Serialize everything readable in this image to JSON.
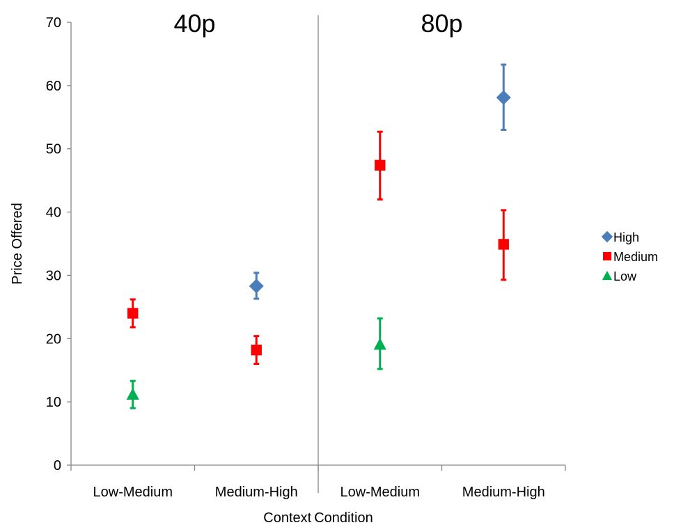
{
  "chart_data": {
    "type": "scatter",
    "ylabel": "Price Offered",
    "xlabel_parts": [
      "Context",
      "Condition"
    ],
    "ylim": [
      0,
      70
    ],
    "yticks": [
      0,
      10,
      20,
      30,
      40,
      50,
      60,
      70
    ],
    "panels": [
      {
        "title": "40p",
        "categories": [
          "Low-Medium",
          "Medium-High"
        ]
      },
      {
        "title": "80p",
        "categories": [
          "Low-Medium",
          "Medium-High"
        ]
      }
    ],
    "legend_position": "right",
    "series": [
      {
        "name": "High",
        "color": "#4a7ebb",
        "marker": "diamond",
        "points": [
          {
            "panel": 0,
            "category": "Medium-High",
            "y": 28.3,
            "err_low": 26.3,
            "err_high": 30.4
          },
          {
            "panel": 1,
            "category": "Medium-High",
            "y": 58.1,
            "err_low": 53.0,
            "err_high": 63.3
          }
        ]
      },
      {
        "name": "Medium",
        "color": "#ff0000",
        "marker": "square",
        "points": [
          {
            "panel": 0,
            "category": "Low-Medium",
            "y": 24.0,
            "err_low": 21.8,
            "err_high": 26.2
          },
          {
            "panel": 0,
            "category": "Medium-High",
            "y": 18.2,
            "err_low": 16.0,
            "err_high": 20.4
          },
          {
            "panel": 1,
            "category": "Low-Medium",
            "y": 47.4,
            "err_low": 42.0,
            "err_high": 52.7
          },
          {
            "panel": 1,
            "category": "Medium-High",
            "y": 34.9,
            "err_low": 29.3,
            "err_high": 40.3
          }
        ]
      },
      {
        "name": "Low",
        "color": "#00b050",
        "marker": "triangle",
        "points": [
          {
            "panel": 0,
            "category": "Low-Medium",
            "y": 11.2,
            "err_low": 9.0,
            "err_high": 13.3
          },
          {
            "panel": 1,
            "category": "Low-Medium",
            "y": 19.1,
            "err_low": 15.2,
            "err_high": 23.2
          }
        ]
      }
    ]
  }
}
